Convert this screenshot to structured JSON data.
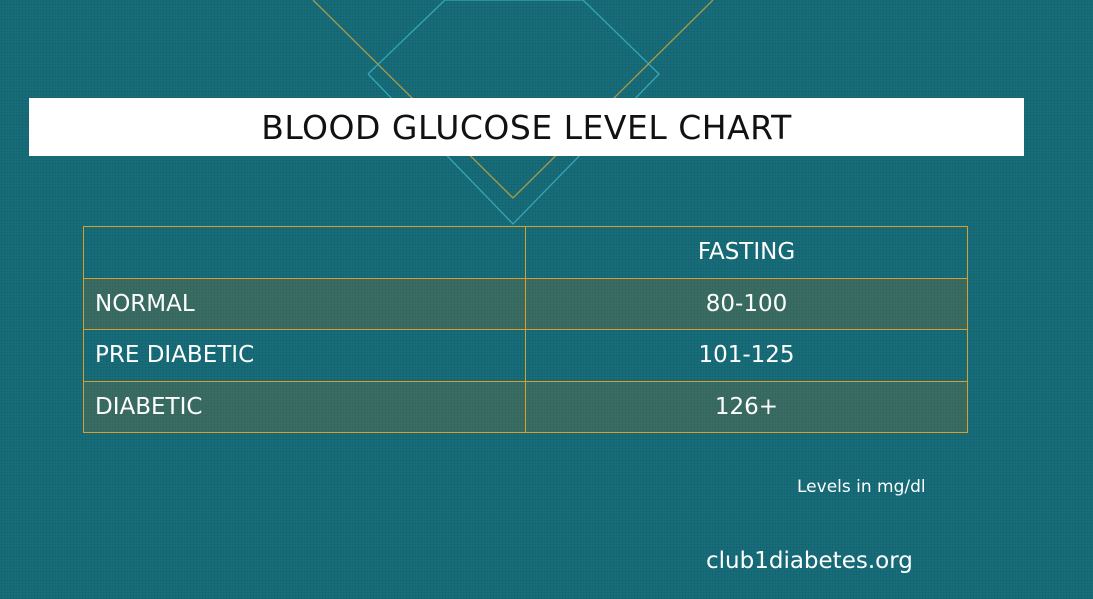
{
  "title": "BLOOD GLUCOSE LEVEL CHART",
  "table": {
    "header": [
      "",
      "FASTING"
    ],
    "rows": [
      {
        "label": "NORMAL",
        "fasting": "80-100"
      },
      {
        "label": "PRE DIABETIC",
        "fasting": "101-125"
      },
      {
        "label": "DIABETIC",
        "fasting": "126+"
      }
    ]
  },
  "units_note": "Levels in mg/dl",
  "website": "club1diabetes.org",
  "colors": {
    "background": "#176d7a",
    "table_border": "#d7a02a",
    "banner": "#ffffff",
    "text": "#ffffff",
    "title_text": "#111111"
  }
}
